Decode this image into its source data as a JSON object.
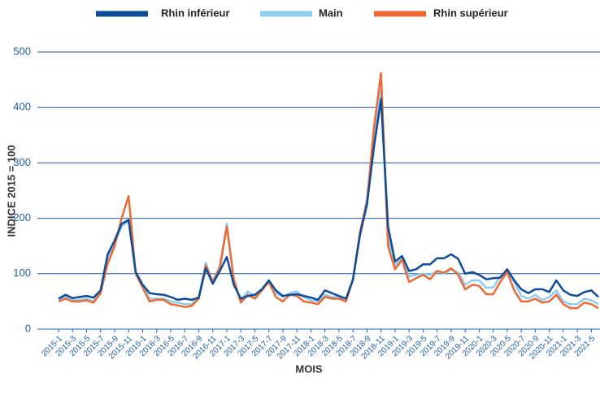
{
  "chart_data": {
    "type": "line",
    "x_label": "MOIS",
    "y_label": "INDICE 2015 = 100",
    "categories": [
      "2015-1",
      null,
      "2015-3",
      null,
      "2015-5",
      null,
      "2015-7",
      null,
      "2015-9",
      null,
      "2015-11",
      null,
      "2016-1",
      null,
      "2016-3",
      null,
      "2016-5",
      null,
      "2016-7",
      null,
      "2016-9",
      null,
      "2016-11",
      null,
      "2017-1",
      null,
      "2017-3",
      null,
      "2017-5",
      null,
      "2017-7",
      null,
      "2017-9",
      null,
      "2017-11",
      null,
      "2018-1",
      null,
      "2018-3",
      null,
      "2018-5",
      null,
      "2018-7",
      null,
      "2018-9",
      null,
      "2018-11",
      null,
      "2019-1",
      null,
      "2019-3",
      null,
      "2019-5",
      null,
      "2019-7",
      null,
      "2019-9",
      null,
      "2019-11",
      null,
      "2020-1",
      null,
      "2020-3",
      null,
      "2020-5",
      null,
      "2020-7",
      null,
      "2020-9",
      null,
      "2020-11",
      null,
      "2021-1",
      null,
      "2021-3",
      null,
      "2021-5",
      null
    ],
    "series": [
      {
        "name": "Rhin inférieur",
        "color": "#0f4c97",
        "values": [
          55,
          62,
          56,
          58,
          60,
          57,
          70,
          135,
          160,
          190,
          197,
          103,
          80,
          65,
          63,
          62,
          58,
          53,
          55,
          53,
          57,
          110,
          82,
          105,
          130,
          80,
          55,
          60,
          62,
          72,
          88,
          70,
          60,
          62,
          63,
          60,
          57,
          53,
          70,
          65,
          60,
          55,
          90,
          170,
          225,
          330,
          415,
          185,
          122,
          132,
          105,
          108,
          117,
          117,
          128,
          128,
          135,
          127,
          100,
          103,
          98,
          90,
          92,
          93,
          108,
          88,
          72,
          65,
          72,
          72,
          67,
          88,
          70,
          62,
          60,
          67,
          70,
          58
        ]
      },
      {
        "name": "Main",
        "color": "#8ecdf0",
        "values": [
          52,
          58,
          52,
          53,
          55,
          50,
          68,
          125,
          155,
          185,
          195,
          100,
          78,
          55,
          55,
          55,
          50,
          48,
          45,
          45,
          58,
          120,
          85,
          115,
          190,
          85,
          52,
          68,
          60,
          70,
          88,
          65,
          58,
          65,
          68,
          58,
          52,
          50,
          62,
          58,
          58,
          52,
          90,
          175,
          235,
          345,
          430,
          165,
          115,
          128,
          95,
          98,
          100,
          98,
          105,
          100,
          108,
          102,
          80,
          88,
          88,
          75,
          75,
          95,
          105,
          85,
          60,
          55,
          62,
          52,
          58,
          70,
          50,
          45,
          45,
          55,
          52,
          45
        ]
      },
      {
        "name": "Rhin supérieur",
        "color": "#ec6a34",
        "values": [
          50,
          55,
          50,
          50,
          52,
          48,
          65,
          118,
          150,
          200,
          240,
          100,
          75,
          50,
          53,
          53,
          45,
          43,
          40,
          42,
          55,
          115,
          85,
          110,
          185,
          90,
          48,
          62,
          55,
          70,
          85,
          58,
          50,
          62,
          60,
          50,
          48,
          45,
          58,
          55,
          55,
          50,
          90,
          175,
          230,
          365,
          462,
          150,
          108,
          125,
          85,
          92,
          98,
          90,
          105,
          102,
          110,
          98,
          72,
          80,
          78,
          63,
          63,
          85,
          103,
          70,
          50,
          50,
          55,
          48,
          50,
          62,
          45,
          38,
          38,
          48,
          45,
          38
        ]
      }
    ],
    "ylim": [
      0,
      500
    ],
    "yticks": [
      0,
      100,
      200,
      300,
      400,
      500
    ],
    "grid": true,
    "legend": "top"
  }
}
